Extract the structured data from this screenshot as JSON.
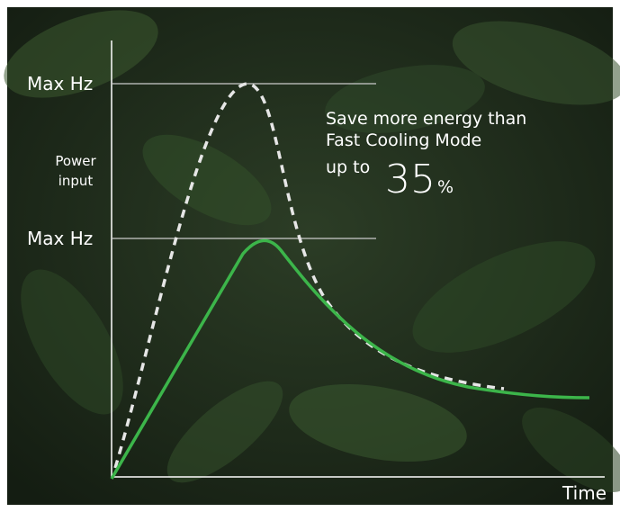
{
  "y_axis_label": [
    "Power",
    "input"
  ],
  "levels": [
    "Max Hz",
    "Max Hz"
  ],
  "x_axis_label": "Time",
  "annotation": {
    "line1": "Save more energy than",
    "line2": "Fast Cooling Mode",
    "prefix": "up to",
    "number": 35,
    "unit": "%"
  }
}
